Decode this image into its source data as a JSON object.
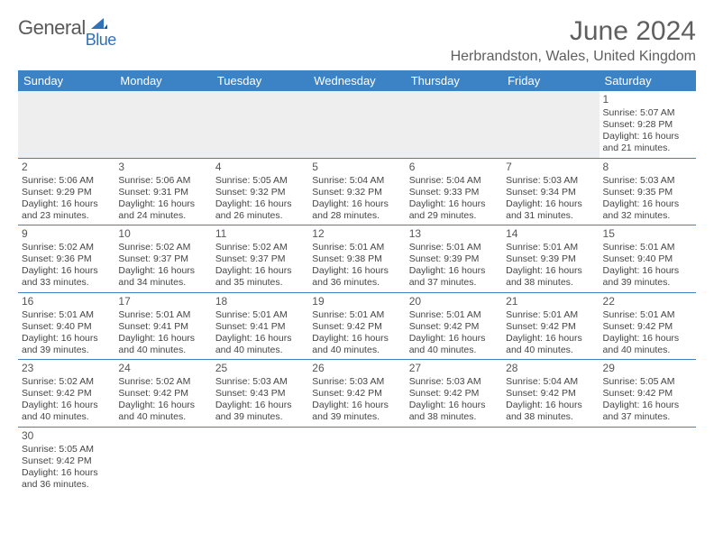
{
  "logo": {
    "word1": "General",
    "word2": "Blue",
    "sail_color": "#2f72b8",
    "text_color": "#5a5a5a"
  },
  "title": "June 2024",
  "location": "Herbrandston, Wales, United Kingdom",
  "colors": {
    "header_bg": "#3b83c5",
    "header_text": "#ffffff",
    "grid_line": "#3b83c5",
    "blank_bg": "#eeeeee",
    "body_text": "#454545"
  },
  "weekdays": [
    "Sunday",
    "Monday",
    "Tuesday",
    "Wednesday",
    "Thursday",
    "Friday",
    "Saturday"
  ],
  "weeks": [
    [
      null,
      null,
      null,
      null,
      null,
      null,
      {
        "d": "1",
        "sunrise": "Sunrise: 5:07 AM",
        "sunset": "Sunset: 9:28 PM",
        "day1": "Daylight: 16 hours",
        "day2": "and 21 minutes."
      }
    ],
    [
      {
        "d": "2",
        "sunrise": "Sunrise: 5:06 AM",
        "sunset": "Sunset: 9:29 PM",
        "day1": "Daylight: 16 hours",
        "day2": "and 23 minutes."
      },
      {
        "d": "3",
        "sunrise": "Sunrise: 5:06 AM",
        "sunset": "Sunset: 9:31 PM",
        "day1": "Daylight: 16 hours",
        "day2": "and 24 minutes."
      },
      {
        "d": "4",
        "sunrise": "Sunrise: 5:05 AM",
        "sunset": "Sunset: 9:32 PM",
        "day1": "Daylight: 16 hours",
        "day2": "and 26 minutes."
      },
      {
        "d": "5",
        "sunrise": "Sunrise: 5:04 AM",
        "sunset": "Sunset: 9:32 PM",
        "day1": "Daylight: 16 hours",
        "day2": "and 28 minutes."
      },
      {
        "d": "6",
        "sunrise": "Sunrise: 5:04 AM",
        "sunset": "Sunset: 9:33 PM",
        "day1": "Daylight: 16 hours",
        "day2": "and 29 minutes."
      },
      {
        "d": "7",
        "sunrise": "Sunrise: 5:03 AM",
        "sunset": "Sunset: 9:34 PM",
        "day1": "Daylight: 16 hours",
        "day2": "and 31 minutes."
      },
      {
        "d": "8",
        "sunrise": "Sunrise: 5:03 AM",
        "sunset": "Sunset: 9:35 PM",
        "day1": "Daylight: 16 hours",
        "day2": "and 32 minutes."
      }
    ],
    [
      {
        "d": "9",
        "sunrise": "Sunrise: 5:02 AM",
        "sunset": "Sunset: 9:36 PM",
        "day1": "Daylight: 16 hours",
        "day2": "and 33 minutes."
      },
      {
        "d": "10",
        "sunrise": "Sunrise: 5:02 AM",
        "sunset": "Sunset: 9:37 PM",
        "day1": "Daylight: 16 hours",
        "day2": "and 34 minutes."
      },
      {
        "d": "11",
        "sunrise": "Sunrise: 5:02 AM",
        "sunset": "Sunset: 9:37 PM",
        "day1": "Daylight: 16 hours",
        "day2": "and 35 minutes."
      },
      {
        "d": "12",
        "sunrise": "Sunrise: 5:01 AM",
        "sunset": "Sunset: 9:38 PM",
        "day1": "Daylight: 16 hours",
        "day2": "and 36 minutes."
      },
      {
        "d": "13",
        "sunrise": "Sunrise: 5:01 AM",
        "sunset": "Sunset: 9:39 PM",
        "day1": "Daylight: 16 hours",
        "day2": "and 37 minutes."
      },
      {
        "d": "14",
        "sunrise": "Sunrise: 5:01 AM",
        "sunset": "Sunset: 9:39 PM",
        "day1": "Daylight: 16 hours",
        "day2": "and 38 minutes."
      },
      {
        "d": "15",
        "sunrise": "Sunrise: 5:01 AM",
        "sunset": "Sunset: 9:40 PM",
        "day1": "Daylight: 16 hours",
        "day2": "and 39 minutes."
      }
    ],
    [
      {
        "d": "16",
        "sunrise": "Sunrise: 5:01 AM",
        "sunset": "Sunset: 9:40 PM",
        "day1": "Daylight: 16 hours",
        "day2": "and 39 minutes."
      },
      {
        "d": "17",
        "sunrise": "Sunrise: 5:01 AM",
        "sunset": "Sunset: 9:41 PM",
        "day1": "Daylight: 16 hours",
        "day2": "and 40 minutes."
      },
      {
        "d": "18",
        "sunrise": "Sunrise: 5:01 AM",
        "sunset": "Sunset: 9:41 PM",
        "day1": "Daylight: 16 hours",
        "day2": "and 40 minutes."
      },
      {
        "d": "19",
        "sunrise": "Sunrise: 5:01 AM",
        "sunset": "Sunset: 9:42 PM",
        "day1": "Daylight: 16 hours",
        "day2": "and 40 minutes."
      },
      {
        "d": "20",
        "sunrise": "Sunrise: 5:01 AM",
        "sunset": "Sunset: 9:42 PM",
        "day1": "Daylight: 16 hours",
        "day2": "and 40 minutes."
      },
      {
        "d": "21",
        "sunrise": "Sunrise: 5:01 AM",
        "sunset": "Sunset: 9:42 PM",
        "day1": "Daylight: 16 hours",
        "day2": "and 40 minutes."
      },
      {
        "d": "22",
        "sunrise": "Sunrise: 5:01 AM",
        "sunset": "Sunset: 9:42 PM",
        "day1": "Daylight: 16 hours",
        "day2": "and 40 minutes."
      }
    ],
    [
      {
        "d": "23",
        "sunrise": "Sunrise: 5:02 AM",
        "sunset": "Sunset: 9:42 PM",
        "day1": "Daylight: 16 hours",
        "day2": "and 40 minutes."
      },
      {
        "d": "24",
        "sunrise": "Sunrise: 5:02 AM",
        "sunset": "Sunset: 9:42 PM",
        "day1": "Daylight: 16 hours",
        "day2": "and 40 minutes."
      },
      {
        "d": "25",
        "sunrise": "Sunrise: 5:03 AM",
        "sunset": "Sunset: 9:43 PM",
        "day1": "Daylight: 16 hours",
        "day2": "and 39 minutes."
      },
      {
        "d": "26",
        "sunrise": "Sunrise: 5:03 AM",
        "sunset": "Sunset: 9:42 PM",
        "day1": "Daylight: 16 hours",
        "day2": "and 39 minutes."
      },
      {
        "d": "27",
        "sunrise": "Sunrise: 5:03 AM",
        "sunset": "Sunset: 9:42 PM",
        "day1": "Daylight: 16 hours",
        "day2": "and 38 minutes."
      },
      {
        "d": "28",
        "sunrise": "Sunrise: 5:04 AM",
        "sunset": "Sunset: 9:42 PM",
        "day1": "Daylight: 16 hours",
        "day2": "and 38 minutes."
      },
      {
        "d": "29",
        "sunrise": "Sunrise: 5:05 AM",
        "sunset": "Sunset: 9:42 PM",
        "day1": "Daylight: 16 hours",
        "day2": "and 37 minutes."
      }
    ],
    [
      {
        "d": "30",
        "sunrise": "Sunrise: 5:05 AM",
        "sunset": "Sunset: 9:42 PM",
        "day1": "Daylight: 16 hours",
        "day2": "and 36 minutes."
      },
      null,
      null,
      null,
      null,
      null,
      null
    ]
  ]
}
